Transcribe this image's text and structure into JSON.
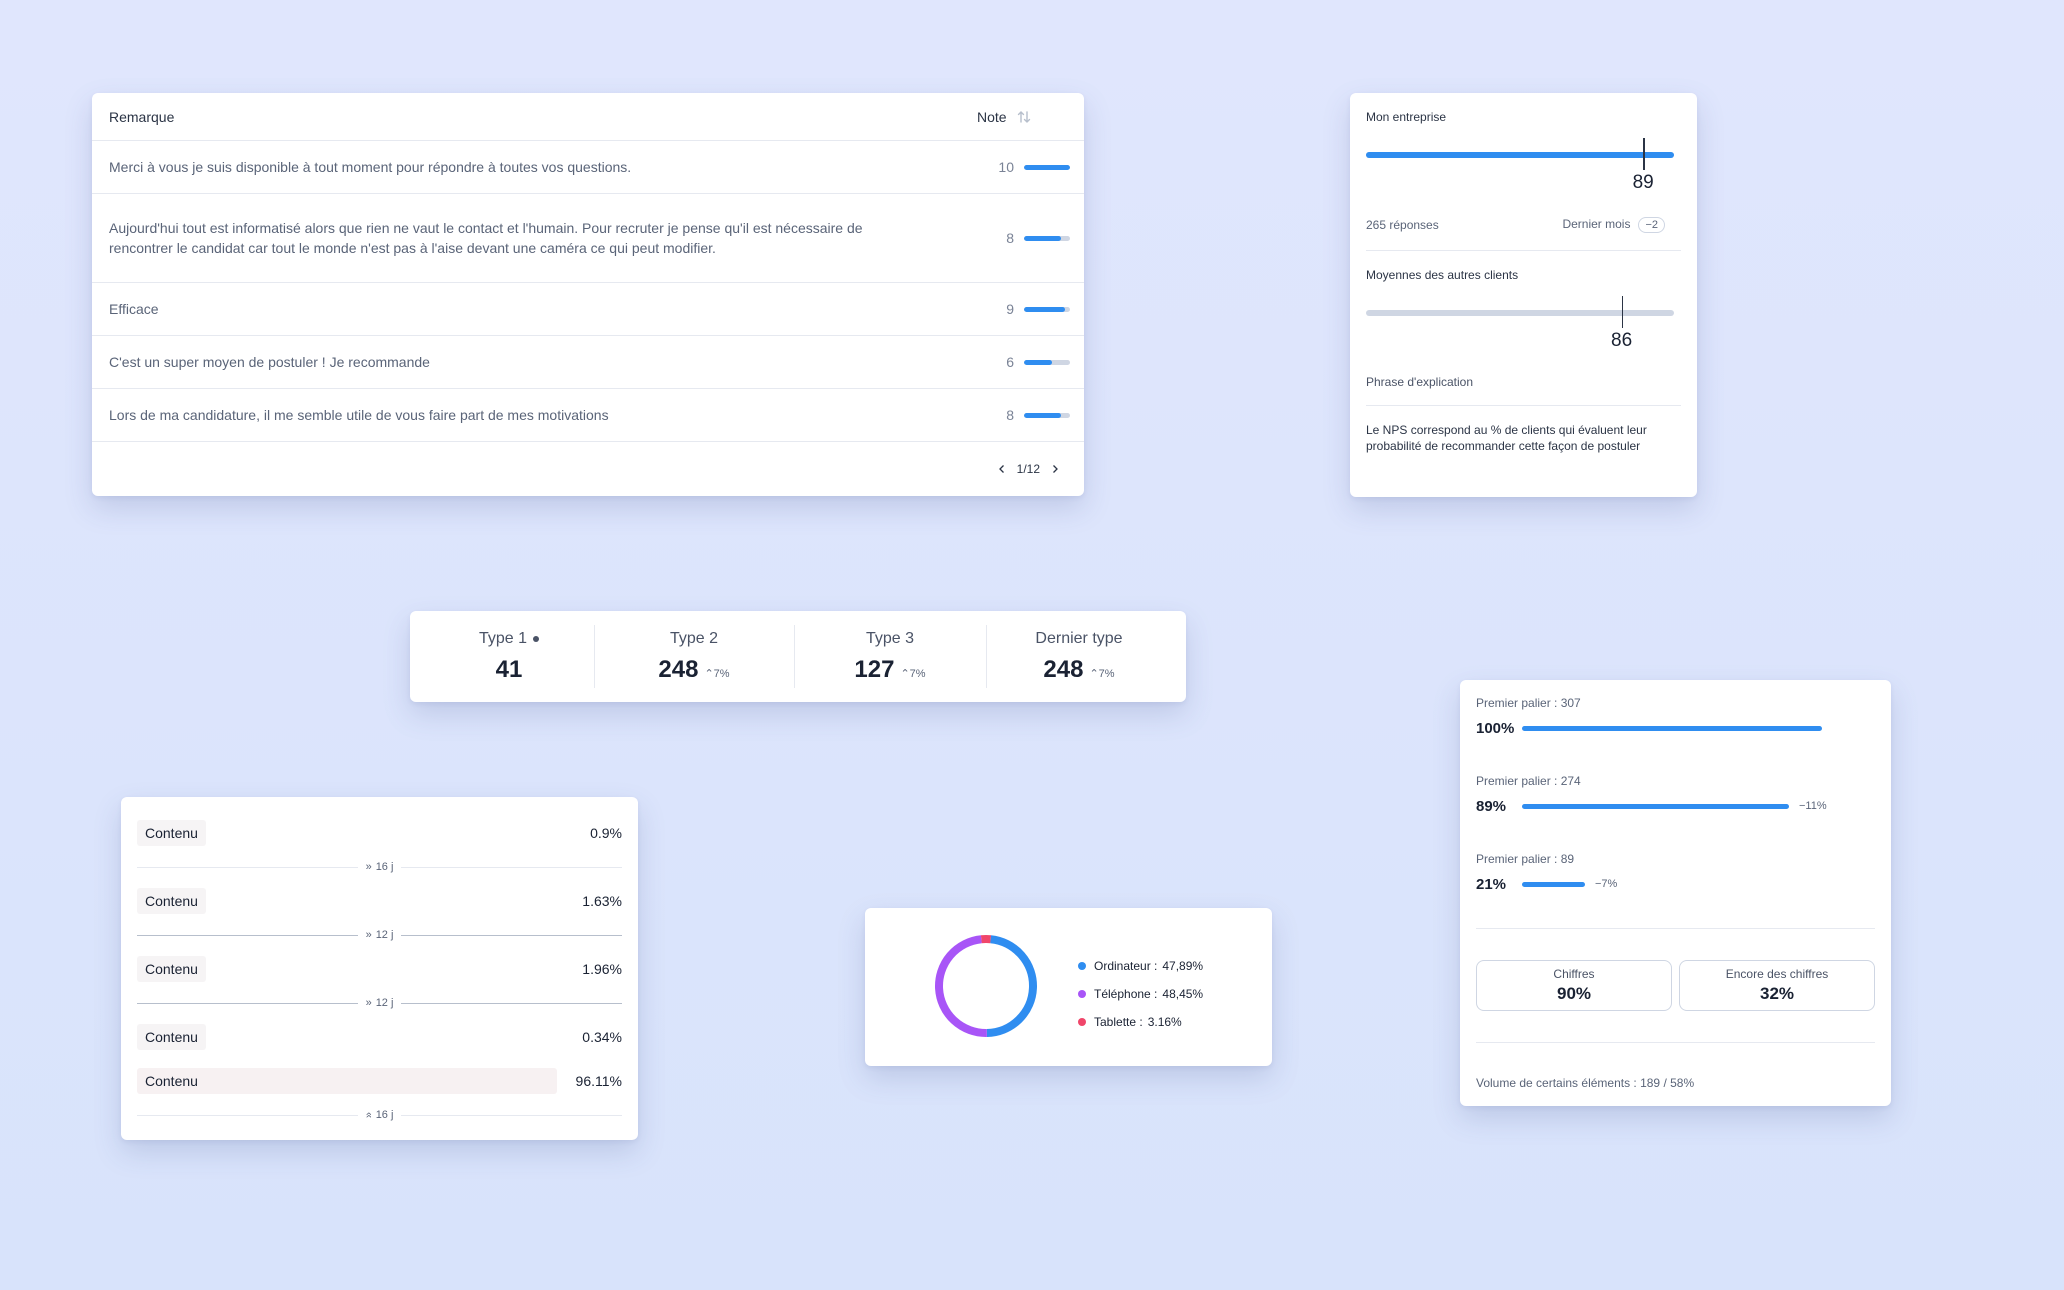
{
  "comments": {
    "header_remark": "Remarque",
    "header_note": "Note",
    "rows": [
      {
        "text": "Merci à vous je suis disponible à tout moment pour répondre à toutes vos questions.",
        "note": "10",
        "fill": 1.0
      },
      {
        "text": "Aujourd'hui tout est informatisé alors que rien ne vaut le contact et l'humain. Pour recruter je pense qu'il est nécessaire de rencontrer le candidat car tout le monde n'est pas à l'aise devant une caméra ce qui peut modifier.",
        "note": "8",
        "fill": 0.8
      },
      {
        "text": "Efficace",
        "note": "9",
        "fill": 0.9
      },
      {
        "text": "C'est un super moyen de postuler ! Je recommande",
        "note": "6",
        "fill": 0.6
      },
      {
        "text": "Lors de ma candidature, il me semble utile de vous faire part de mes motivations",
        "note": "8",
        "fill": 0.8
      }
    ],
    "pagination": "1/12"
  },
  "nps": {
    "title": "Mon entreprise",
    "value": "89",
    "responses": "265 réponses",
    "period": "Dernier mois",
    "delta": "−2",
    "others_title": "Moyennes des autres clients",
    "others_value": "86",
    "explanation_title": "Phrase d'explication",
    "explanation": "Le NPS correspond au % de clients qui évaluent leur probabilité de recommander cette façon de postuler"
  },
  "types": [
    {
      "name": "Type 1",
      "value": "41",
      "delta": ""
    },
    {
      "name": "Type 2",
      "value": "248",
      "delta": "7%"
    },
    {
      "name": "Type 3",
      "value": "127",
      "delta": "7%"
    },
    {
      "name": "Dernier type",
      "value": "248",
      "delta": "7%"
    }
  ],
  "contenu": {
    "rows": [
      {
        "label": "Contenu",
        "value": "0.9%"
      },
      {
        "label": "Contenu",
        "value": "1.63%"
      },
      {
        "label": "Contenu",
        "value": "1.96%"
      },
      {
        "label": "Contenu",
        "value": "0.34%"
      },
      {
        "label": "Contenu",
        "value": "96.11%"
      }
    ],
    "separators": [
      "16 j",
      "12 j",
      "12 j",
      "16 j"
    ]
  },
  "donut": {
    "items": [
      {
        "label": "Ordinateur :",
        "value": "47,89%",
        "color": "#2f8df0"
      },
      {
        "label": "Téléphone :",
        "value": "48,45%",
        "color": "#a855f7"
      },
      {
        "label": "Tablette :",
        "value": "3.16%",
        "color": "#f0466a"
      }
    ]
  },
  "chart_data": {
    "type": "pie",
    "categories": [
      "Ordinateur",
      "Téléphone",
      "Tablette"
    ],
    "values": [
      47.89,
      48.45,
      3.16
    ],
    "colors": [
      "#2f8df0",
      "#a855f7",
      "#f0466a"
    ],
    "legend": "right"
  },
  "paliers": {
    "rows": [
      {
        "label": "Premier palier : 307",
        "pct": "100%",
        "fill": 1.0,
        "delta": ""
      },
      {
        "label": "Premier palier : 274",
        "pct": "89%",
        "fill": 0.89,
        "delta": "−11%"
      },
      {
        "label": "Premier palier : 89",
        "pct": "21%",
        "fill": 0.21,
        "delta": "−7%"
      }
    ],
    "kpis": [
      {
        "label": "Chiffres",
        "value": "90%"
      },
      {
        "label": "Encore des chiffres",
        "value": "32%"
      }
    ],
    "footer": "Volume de certains éléments : 189 / 58%"
  },
  "colors": {
    "accent": "#2f8df0",
    "track": "#cfd6e3",
    "text": "#1a2233",
    "muted": "#5a6478"
  }
}
